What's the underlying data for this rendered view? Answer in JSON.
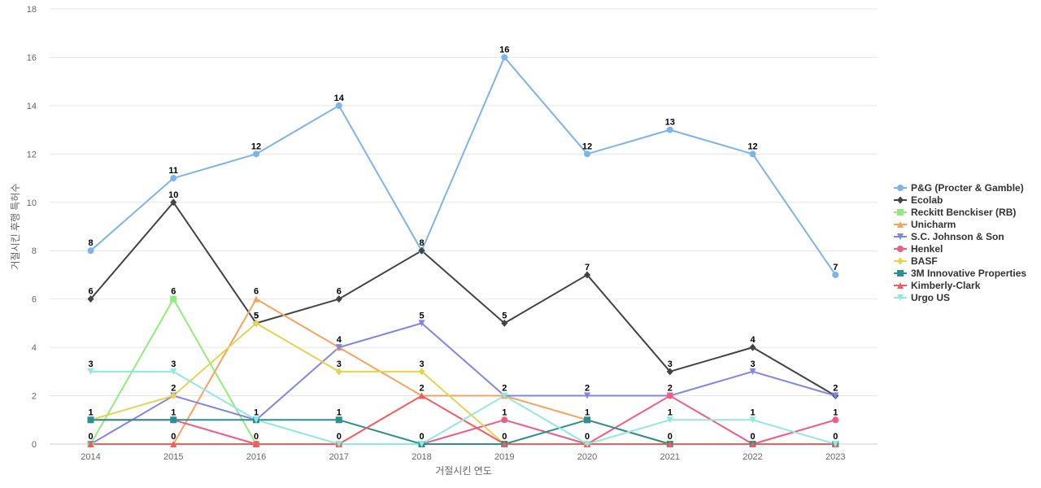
{
  "chart_data": {
    "type": "line",
    "title": "",
    "xlabel": "거절시킨 연도",
    "ylabel": "거절시킨 후행 특허수",
    "x": [
      "2014",
      "2015",
      "2016",
      "2017",
      "2018",
      "2019",
      "2020",
      "2021",
      "2022",
      "2023"
    ],
    "ylim": [
      0,
      18
    ],
    "yticks": [
      0,
      2,
      4,
      6,
      8,
      10,
      12,
      14,
      16,
      18
    ],
    "grid": true,
    "legend_position": "right",
    "series": [
      {
        "name": "P&G (Procter & Gamble)",
        "color": "#7cb5ec",
        "marker": "circle",
        "values": [
          8,
          11,
          12,
          14,
          8,
          16,
          12,
          13,
          12,
          7
        ]
      },
      {
        "name": "Ecolab",
        "color": "#434348",
        "marker": "diamond",
        "values": [
          6,
          10,
          5,
          6,
          8,
          5,
          7,
          3,
          4,
          2
        ]
      },
      {
        "name": "Reckitt Benckiser (RB)",
        "color": "#90ed7d",
        "marker": "square",
        "values": [
          0,
          6,
          0,
          0,
          0,
          0,
          0,
          0,
          0,
          0
        ]
      },
      {
        "name": "Unicharm",
        "color": "#f7a35c",
        "marker": "triangle",
        "values": [
          0,
          0,
          6,
          4,
          2,
          2,
          1,
          0,
          0,
          0
        ]
      },
      {
        "name": "S.C. Johnson & Son",
        "color": "#8085e9",
        "marker": "triangle-down",
        "values": [
          0,
          2,
          1,
          4,
          5,
          2,
          2,
          2,
          3,
          2
        ]
      },
      {
        "name": "Henkel",
        "color": "#f15c80",
        "marker": "circle",
        "values": [
          1,
          1,
          0,
          0,
          0,
          1,
          0,
          2,
          0,
          1
        ]
      },
      {
        "name": "BASF",
        "color": "#e4d354",
        "marker": "diamond",
        "values": [
          1,
          2,
          5,
          3,
          3,
          0,
          0,
          0,
          0,
          0
        ]
      },
      {
        "name": "3M Innovative Properties",
        "color": "#2b908f",
        "marker": "square",
        "values": [
          1,
          1,
          1,
          1,
          0,
          0,
          1,
          0,
          0,
          0
        ]
      },
      {
        "name": "Kimberly-Clark",
        "color": "#f45b5b",
        "marker": "triangle",
        "values": [
          0,
          0,
          0,
          0,
          2,
          0,
          0,
          0,
          0,
          0
        ]
      },
      {
        "name": "Urgo US",
        "color": "#91e8e1",
        "marker": "triangle-down",
        "values": [
          3,
          3,
          1,
          0,
          0,
          2,
          0,
          1,
          1,
          0
        ]
      }
    ],
    "data_labels": [
      {
        "x": "2014",
        "series": "P&G (Procter & Gamble)",
        "text": "8"
      },
      {
        "x": "2015",
        "series": "P&G (Procter & Gamble)",
        "text": "11"
      },
      {
        "x": "2016",
        "series": "P&G (Procter & Gamble)",
        "text": "12"
      },
      {
        "x": "2017",
        "series": "P&G (Procter & Gamble)",
        "text": "14"
      },
      {
        "x": "2018",
        "series": "P&G (Procter & Gamble)",
        "text": "8"
      },
      {
        "x": "2019",
        "series": "P&G (Procter & Gamble)",
        "text": "16"
      },
      {
        "x": "2020",
        "series": "P&G (Procter & Gamble)",
        "text": "12"
      },
      {
        "x": "2021",
        "series": "P&G (Procter & Gamble)",
        "text": "13"
      },
      {
        "x": "2022",
        "series": "P&G (Procter & Gamble)",
        "text": "12"
      },
      {
        "x": "2023",
        "series": "P&G (Procter & Gamble)",
        "text": "7"
      },
      {
        "x": "2014",
        "series": "Ecolab",
        "text": "6"
      },
      {
        "x": "2015",
        "series": "Ecolab",
        "text": "10"
      },
      {
        "x": "2016",
        "series": "Ecolab",
        "text": "5"
      },
      {
        "x": "2017",
        "series": "Ecolab",
        "text": "6"
      },
      {
        "x": "2019",
        "series": "Ecolab",
        "text": "5"
      },
      {
        "x": "2020",
        "series": "Ecolab",
        "text": "7"
      },
      {
        "x": "2021",
        "series": "Ecolab",
        "text": "3"
      },
      {
        "x": "2022",
        "series": "Ecolab",
        "text": "4"
      },
      {
        "x": "2023",
        "series": "Ecolab",
        "text": "2"
      },
      {
        "x": "2015",
        "series": "Reckitt Benckiser (RB)",
        "text": "6"
      },
      {
        "x": "2016",
        "series": "Unicharm",
        "text": "6"
      },
      {
        "x": "2017",
        "series": "S.C. Johnson & Son",
        "text": "4"
      },
      {
        "x": "2018",
        "series": "S.C. Johnson & Son",
        "text": "5"
      },
      {
        "x": "2020",
        "series": "S.C. Johnson & Son",
        "text": "2"
      },
      {
        "x": "2021",
        "series": "S.C. Johnson & Son",
        "text": "2"
      },
      {
        "x": "2022",
        "series": "S.C. Johnson & Son",
        "text": "3"
      },
      {
        "x": "2015",
        "series": "S.C. Johnson & Son",
        "text": "2"
      },
      {
        "x": "2016",
        "series": "BASF",
        "text": "5"
      },
      {
        "x": "2017",
        "series": "BASF",
        "text": "3"
      },
      {
        "x": "2018",
        "series": "BASF",
        "text": "3"
      },
      {
        "x": "2018",
        "series": "Kimberly-Clark",
        "text": "2"
      },
      {
        "x": "2019",
        "series": "Urgo US",
        "text": "2"
      },
      {
        "x": "2014",
        "series": "Urgo US",
        "text": "3"
      },
      {
        "x": "2015",
        "series": "Urgo US",
        "text": "3"
      },
      {
        "x": "2014",
        "series": "3M Innovative Properties",
        "text": "1"
      },
      {
        "x": "2015",
        "series": "3M Innovative Properties",
        "text": "1"
      },
      {
        "x": "2016",
        "series": "Urgo US",
        "text": "1"
      },
      {
        "x": "2017",
        "series": "3M Innovative Properties",
        "text": "1"
      },
      {
        "x": "2019",
        "series": "Henkel",
        "text": "1"
      },
      {
        "x": "2020",
        "series": "3M Innovative Properties",
        "text": "1"
      },
      {
        "x": "2021",
        "series": "Urgo US",
        "text": "1"
      },
      {
        "x": "2022",
        "series": "Urgo US",
        "text": "1"
      },
      {
        "x": "2023",
        "series": "Henkel",
        "text": "1"
      },
      {
        "x": "2014",
        "series": "Kimberly-Clark",
        "text": "0"
      },
      {
        "x": "2015",
        "series": "Kimberly-Clark",
        "text": "0"
      },
      {
        "x": "2016",
        "series": "Kimberly-Clark",
        "text": "0"
      },
      {
        "x": "2017",
        "series": "Kimberly-Clark",
        "text": "0"
      },
      {
        "x": "2018",
        "series": "Urgo US",
        "text": "0"
      },
      {
        "x": "2019",
        "series": "Kimberly-Clark",
        "text": "0"
      },
      {
        "x": "2020",
        "series": "Kimberly-Clark",
        "text": "0"
      },
      {
        "x": "2021",
        "series": "Kimberly-Clark",
        "text": "0"
      },
      {
        "x": "2022",
        "series": "Kimberly-Clark",
        "text": "0"
      },
      {
        "x": "2023",
        "series": "Kimberly-Clark",
        "text": "0"
      }
    ]
  }
}
